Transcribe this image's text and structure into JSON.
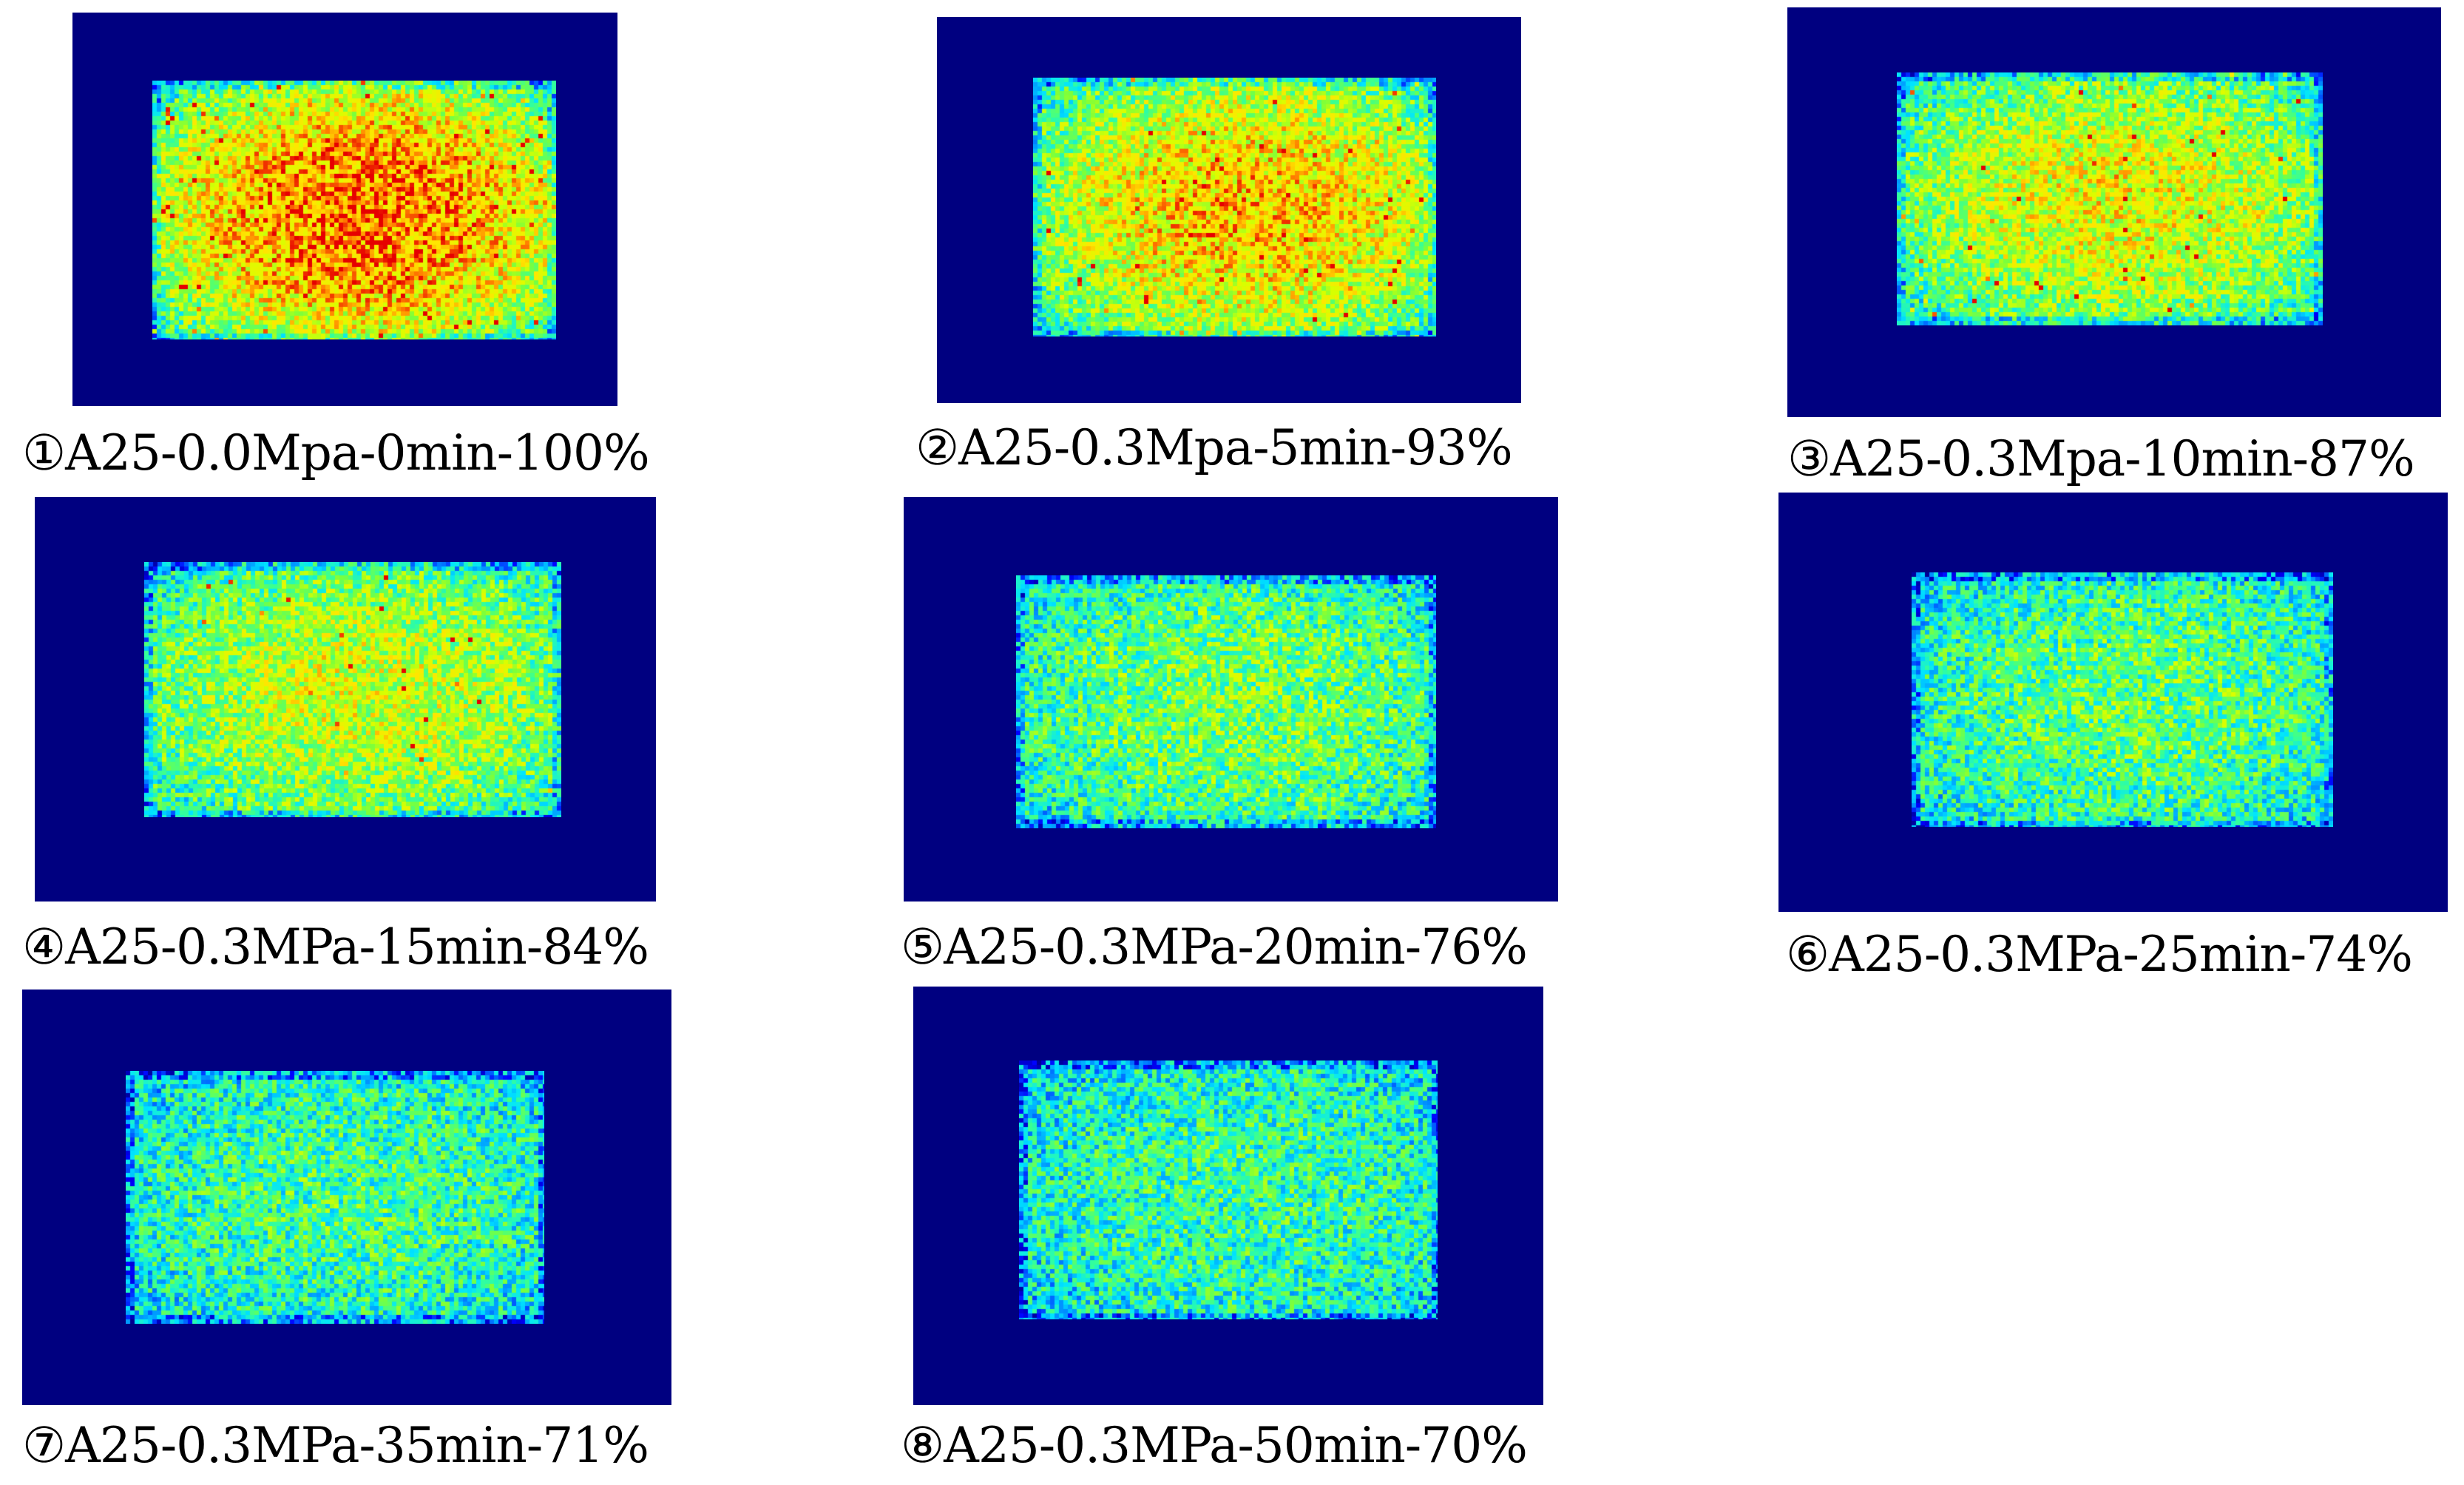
{
  "figure": {
    "frame_color": "#000080",
    "colormap": [
      "#000080",
      "#0000ff",
      "#0090ff",
      "#00e5ff",
      "#34ff9a",
      "#7aff3c",
      "#d8ff00",
      "#ffe600",
      "#ff7a00",
      "#e60000"
    ],
    "panels": [
      {
        "label": "①A25-0.0Mpa-0min-100%",
        "intensity": 1.0
      },
      {
        "label": "②A25-0.3Mpa-5min-93%",
        "intensity": 0.93
      },
      {
        "label": "③A25-0.3Mpa-10min-87%",
        "intensity": 0.87
      },
      {
        "label": "④A25-0.3MPa-15min-84%",
        "intensity": 0.84
      },
      {
        "label": "⑤A25-0.3MPa-20min-76%",
        "intensity": 0.76
      },
      {
        "label": "⑥A25-0.3MPa-25min-74%",
        "intensity": 0.74
      },
      {
        "label": "⑦A25-0.3MPa-35min-71%",
        "intensity": 0.71
      },
      {
        "label": "⑧A25-0.3MPa-50min-70%",
        "intensity": 0.7
      }
    ]
  }
}
